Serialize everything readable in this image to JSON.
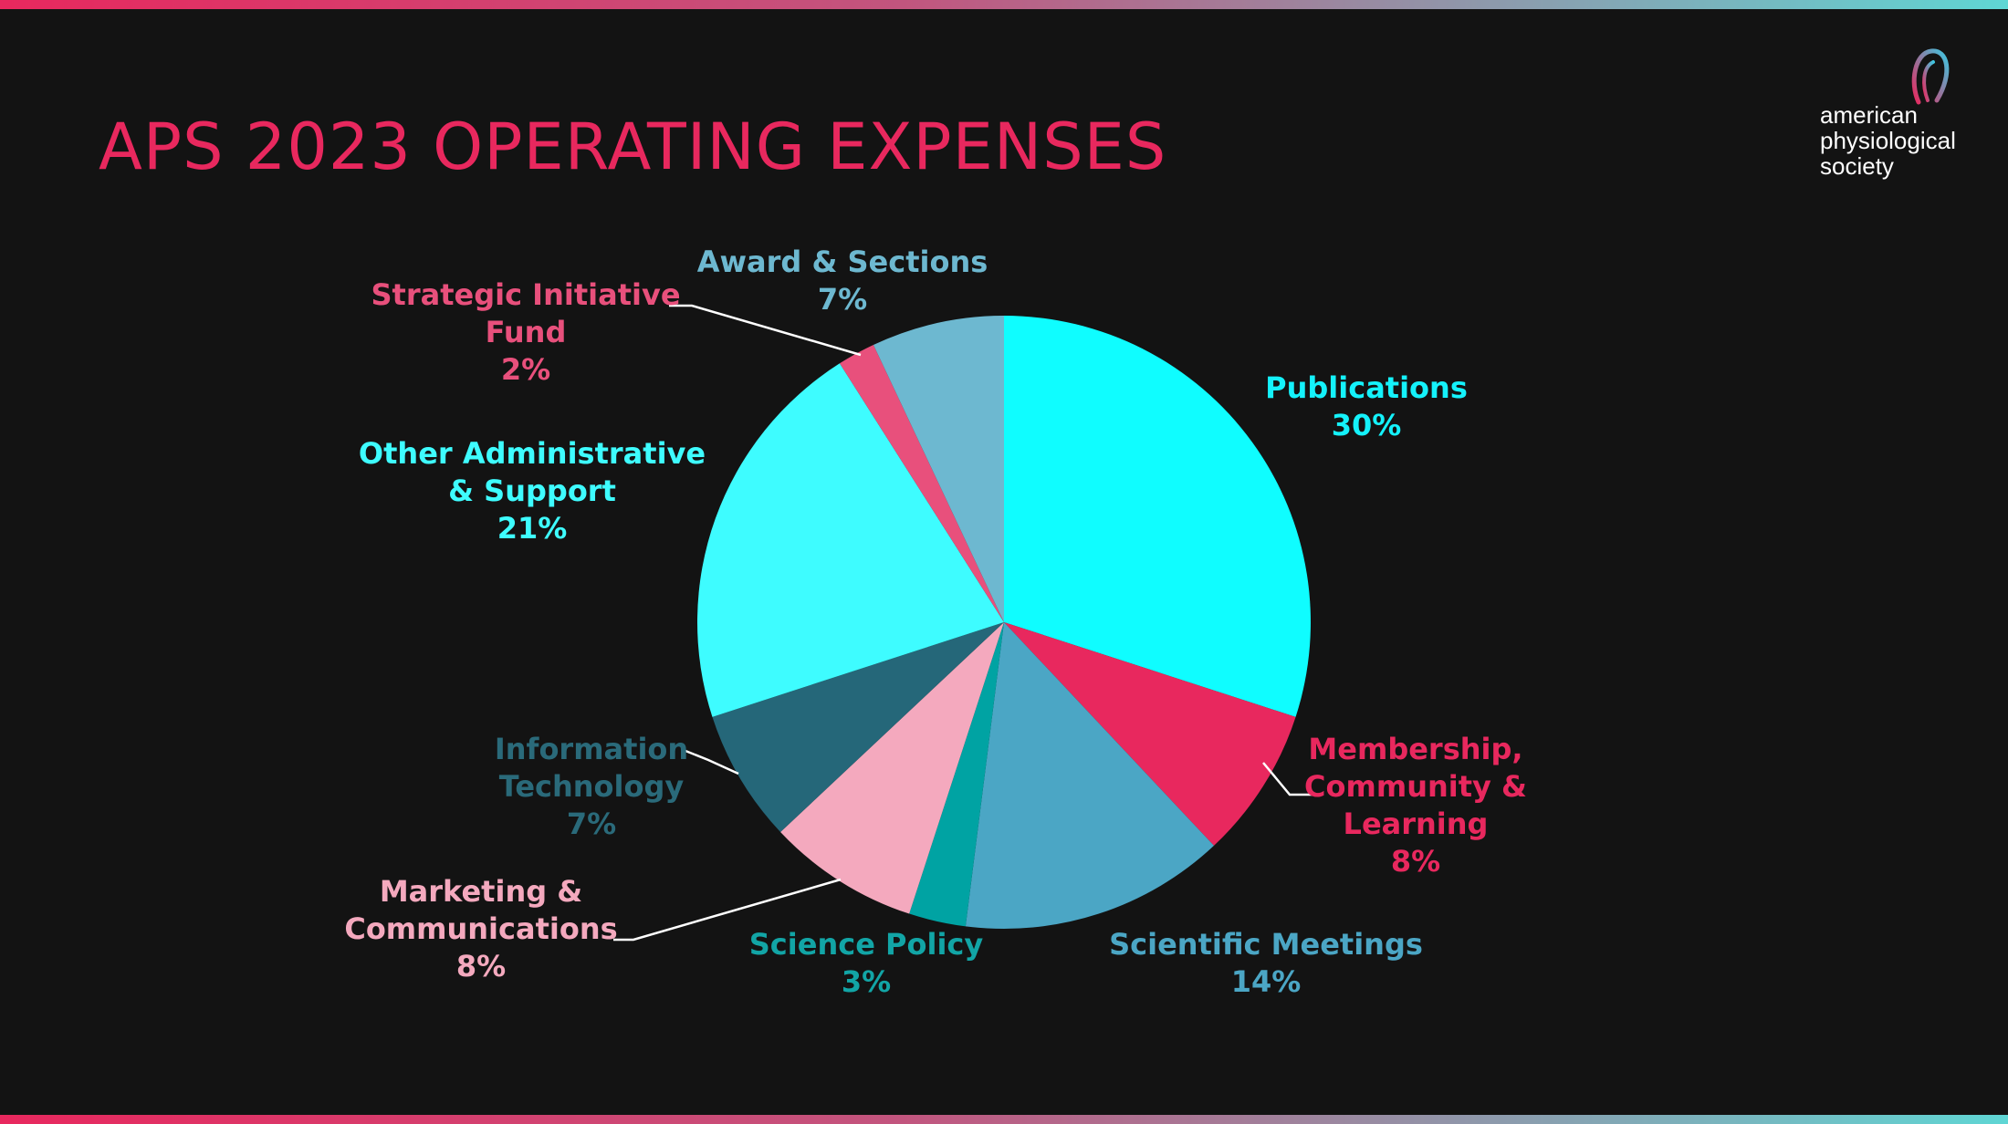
{
  "title": "APS 2023 OPERATING EXPENSES",
  "logo": {
    "line1": "american",
    "line2": "physiological",
    "line3": "society"
  },
  "colors": {
    "accent": "#e8285e",
    "background": "#131313"
  },
  "chart_data": {
    "type": "pie",
    "title": "APS 2023 OPERATING EXPENSES",
    "start_angle_deg": 0,
    "direction": "clockwise",
    "slices": [
      {
        "label_lines": [
          "Publications"
        ],
        "value": 30,
        "pct_label": "30%",
        "color": "#0ffdff",
        "label_color": "#14f2fb"
      },
      {
        "label_lines": [
          "Membership,",
          "Community &",
          "Learning"
        ],
        "value": 8,
        "pct_label": "8%",
        "color": "#e8285e",
        "label_color": "#e8285e"
      },
      {
        "label_lines": [
          "Scientific Meetings"
        ],
        "value": 14,
        "pct_label": "14%",
        "color": "#4ba6c5",
        "label_color": "#4ba6c5"
      },
      {
        "label_lines": [
          "Science Policy"
        ],
        "value": 3,
        "pct_label": "3%",
        "color": "#00a3a3",
        "label_color": "#12a5a6"
      },
      {
        "label_lines": [
          "Marketing &",
          "Communications"
        ],
        "value": 8,
        "pct_label": "8%",
        "color": "#f4a9be",
        "label_color": "#f4a9be"
      },
      {
        "label_lines": [
          "Information",
          "Technology"
        ],
        "value": 7,
        "pct_label": "7%",
        "color": "#256779",
        "label_color": "#2a6a7a"
      },
      {
        "label_lines": [
          "Other Administrative",
          "& Support"
        ],
        "value": 21,
        "pct_label": "21%",
        "color": "#3efcff",
        "label_color": "#3efcff"
      },
      {
        "label_lines": [
          "Strategic Initiative",
          "Fund"
        ],
        "value": 2,
        "pct_label": "2%",
        "color": "#e8507c",
        "label_color": "#e8507c"
      },
      {
        "label_lines": [
          "Award & Sections"
        ],
        "value": 7,
        "pct_label": "7%",
        "color": "#6db8d0",
        "label_color": "#6db8d0"
      }
    ]
  }
}
